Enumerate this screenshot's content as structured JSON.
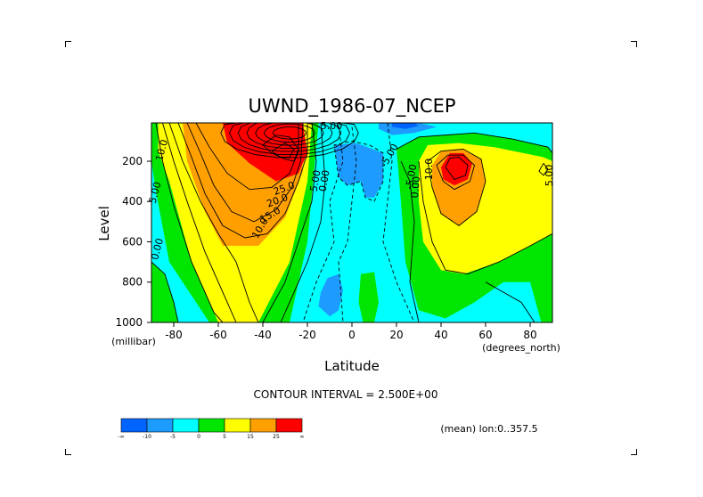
{
  "chart_data": {
    "type": "heatmap",
    "title": "UWND_1986-07_NCEP",
    "xlabel": "Latitude",
    "ylabel": "Level",
    "x_units": "(degrees_north)",
    "y_units": "(millibar)",
    "xlim": [
      -90,
      90
    ],
    "ylim": [
      1000,
      10
    ],
    "x_ticks": [
      -80,
      -60,
      -40,
      -20,
      0,
      20,
      40,
      60,
      80
    ],
    "y_ticks": [
      200,
      400,
      600,
      800,
      1000
    ],
    "contour_interval_text": "CONTOUR INTERVAL = 2.500E+00",
    "footnote": "(mean) lon:0..357.5",
    "contour_labels": [
      "10.0",
      "5.00",
      "0.00",
      "25.0",
      "20.0",
      "15.0",
      "10.0",
      "5.00",
      "0.00",
      "-5.00",
      "-5.00",
      "0.00",
      "10.0",
      "5.00",
      "-5.00"
    ],
    "colorbar": {
      "labels": [
        "-∞",
        "-10",
        "-5",
        "0",
        "5",
        "15",
        "25",
        "∞"
      ],
      "colors": [
        "#0064ff",
        "#1e9bff",
        "#00ffff",
        "#00e600",
        "#ffff00",
        "#ffa000",
        "#ff0000"
      ]
    },
    "jets": [
      {
        "lat": -30,
        "level": 200,
        "max_value": 37.5
      },
      {
        "lat": 45,
        "level": 230,
        "max_value": 22.5
      }
    ],
    "easterly_min": {
      "lat": 5,
      "level": 50,
      "min_value": -12.5
    }
  }
}
